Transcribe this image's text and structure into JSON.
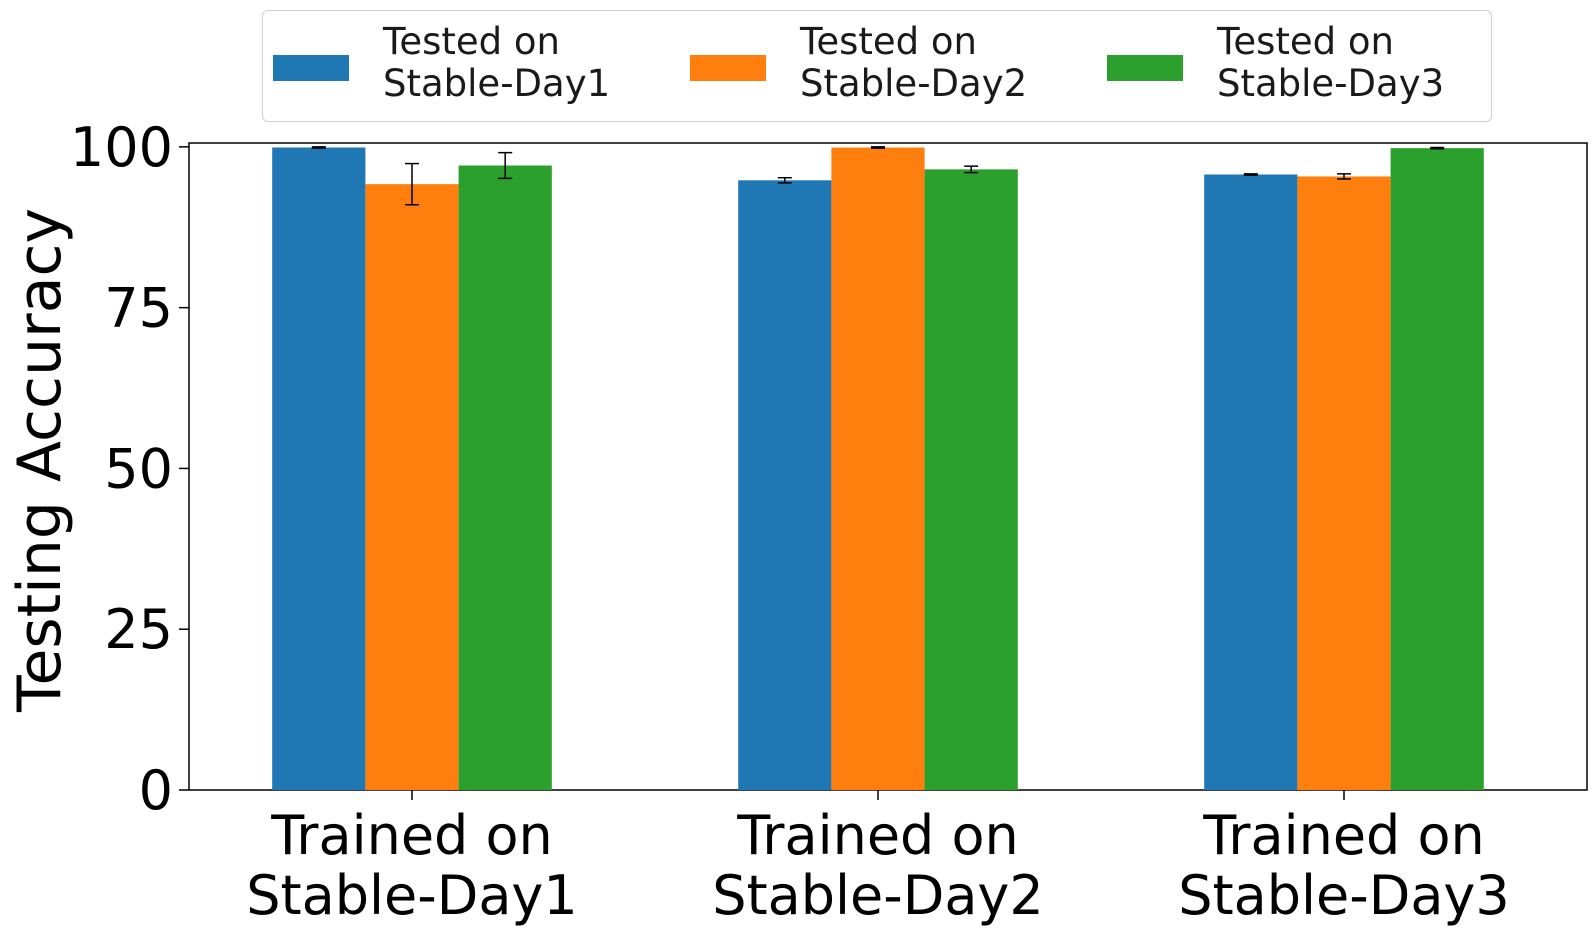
{
  "chart_data": {
    "type": "bar",
    "categories": [
      "Trained on\nStable-Day1",
      "Trained on\nStable-Day2",
      "Trained on\nStable-Day3"
    ],
    "series": [
      {
        "name": "Tested on\nStable-Day1",
        "color": "#1f77b4",
        "values": [
          99.9,
          94.8,
          95.7
        ],
        "errors": [
          0.1,
          0.4,
          0.1
        ]
      },
      {
        "name": "Tested on\nStable-Day2",
        "color": "#ff7f0e",
        "values": [
          94.2,
          99.9,
          95.4
        ],
        "errors": [
          3.2,
          0.1,
          0.4
        ]
      },
      {
        "name": "Tested on\nStable-Day3",
        "color": "#2ca02c",
        "values": [
          97.1,
          96.5,
          99.8
        ],
        "errors": [
          2.0,
          0.5,
          0.1
        ]
      }
    ],
    "ylabel": "Testing Accuracy",
    "xlabel": "",
    "ylim": [
      0,
      100.6
    ],
    "yticks": [
      "0",
      "25",
      "50",
      "75",
      "100"
    ],
    "legend": "top-center",
    "grid": false
  }
}
